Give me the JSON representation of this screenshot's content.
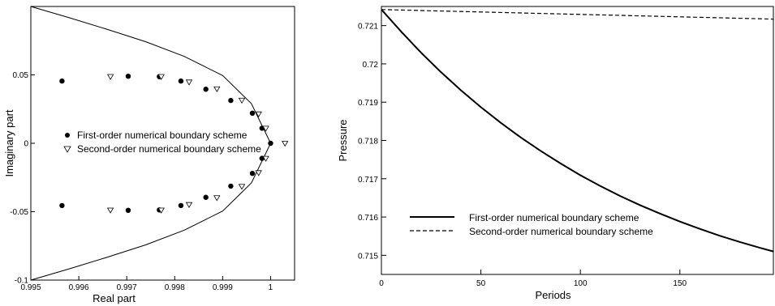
{
  "chart_data": [
    {
      "type": "scatter",
      "title": "",
      "xlabel": "Real part",
      "ylabel": "Imaginary part",
      "xlim": [
        0.995,
        1.0005
      ],
      "ylim": [
        -0.1,
        0.1
      ],
      "xticks": [
        {
          "value": 0.995,
          "label": "0.995"
        },
        {
          "value": 0.996,
          "label": "0.996"
        },
        {
          "value": 0.997,
          "label": "0.997"
        },
        {
          "value": 0.998,
          "label": "0.998"
        },
        {
          "value": 0.999,
          "label": "0.999"
        },
        {
          "value": 1.0,
          "label": "1"
        }
      ],
      "yticks": [
        {
          "value": -0.1,
          "label": "-0.1"
        },
        {
          "value": -0.05,
          "label": "-0.05"
        },
        {
          "value": 0,
          "label": "0"
        },
        {
          "value": 0.05,
          "label": "0.05"
        }
      ],
      "legend_position": "center-left",
      "series": [
        {
          "name": "First-order numerical boundary scheme",
          "marker": "circle",
          "points": [
            [
              0.99565,
              0.0455
            ],
            [
              0.99703,
              0.049
            ],
            [
              0.99768,
              0.0487
            ],
            [
              0.99813,
              0.0455
            ],
            [
              0.99865,
              0.0395
            ],
            [
              0.99917,
              0.0313
            ],
            [
              0.99962,
              0.022
            ],
            [
              0.99982,
              0.011
            ],
            [
              1.0,
              0.0
            ],
            [
              0.99982,
              -0.011
            ],
            [
              0.99962,
              -0.022
            ],
            [
              0.99917,
              -0.0313
            ],
            [
              0.99865,
              -0.0395
            ],
            [
              0.99813,
              -0.0455
            ],
            [
              0.99768,
              -0.0487
            ],
            [
              0.99703,
              -0.049
            ],
            [
              0.99565,
              -0.0455
            ]
          ]
        },
        {
          "name": "Second-order numerical boundary scheme",
          "marker": "triangle-down",
          "points": [
            [
              0.99666,
              0.0488
            ],
            [
              0.99772,
              0.0488
            ],
            [
              0.9983,
              0.0448
            ],
            [
              0.99888,
              0.0398
            ],
            [
              0.9994,
              0.0315
            ],
            [
              0.99975,
              0.0215
            ],
            [
              0.9999,
              0.011
            ],
            [
              1.0003,
              0.0
            ],
            [
              0.9999,
              -0.011
            ],
            [
              0.99975,
              -0.0215
            ],
            [
              0.9994,
              -0.0315
            ],
            [
              0.99888,
              -0.0398
            ],
            [
              0.9983,
              -0.0448
            ],
            [
              0.99772,
              -0.0488
            ],
            [
              0.99666,
              -0.0488
            ]
          ]
        }
      ],
      "boundary_curve": [
        [
          0.995,
          0.1
        ],
        [
          0.9958,
          0.0918
        ],
        [
          0.9966,
          0.0832
        ],
        [
          0.9974,
          0.0742
        ],
        [
          0.9982,
          0.0635
        ],
        [
          0.999,
          0.0495
        ],
        [
          0.9996,
          0.029
        ],
        [
          1.0,
          0.0
        ],
        [
          0.9996,
          -0.029
        ],
        [
          0.999,
          -0.0495
        ],
        [
          0.9982,
          -0.0635
        ],
        [
          0.9974,
          -0.0742
        ],
        [
          0.9966,
          -0.0832
        ],
        [
          0.9958,
          -0.0918
        ],
        [
          0.995,
          -0.1
        ]
      ]
    },
    {
      "type": "line",
      "title": "",
      "xlabel": "Periods",
      "ylabel": "Pressure",
      "xlim": [
        0,
        197
      ],
      "ylim": [
        0.7145,
        0.7215
      ],
      "xticks": [
        {
          "value": 0,
          "label": "0"
        },
        {
          "value": 50,
          "label": "50"
        },
        {
          "value": 100,
          "label": "100"
        },
        {
          "value": 150,
          "label": "150"
        }
      ],
      "yticks": [
        {
          "value": 0.715,
          "label": "0.715"
        },
        {
          "value": 0.716,
          "label": "0.716"
        },
        {
          "value": 0.717,
          "label": "0.717"
        },
        {
          "value": 0.718,
          "label": "0.718"
        },
        {
          "value": 0.719,
          "label": "0.719"
        },
        {
          "value": 0.72,
          "label": "0.72"
        },
        {
          "value": 0.721,
          "label": "0.721"
        }
      ],
      "legend_position": "bottom-left",
      "series": [
        {
          "name": "First-order numerical boundary scheme",
          "style": "solid",
          "x": [
            0,
            10,
            20,
            30,
            40,
            50,
            60,
            70,
            80,
            90,
            100,
            110,
            120,
            130,
            140,
            150,
            160,
            170,
            180,
            190,
            197
          ],
          "y": [
            0.72142,
            0.72084,
            0.72029,
            0.71978,
            0.71931,
            0.71887,
            0.71846,
            0.71808,
            0.71773,
            0.7174,
            0.71709,
            0.71681,
            0.71655,
            0.71631,
            0.71609,
            0.71588,
            0.71569,
            0.71551,
            0.71535,
            0.7152,
            0.7151
          ]
        },
        {
          "name": "Second-order numerical boundary scheme",
          "style": "dashed",
          "x": [
            0,
            197
          ],
          "y": [
            0.72142,
            0.72117
          ]
        }
      ]
    }
  ]
}
